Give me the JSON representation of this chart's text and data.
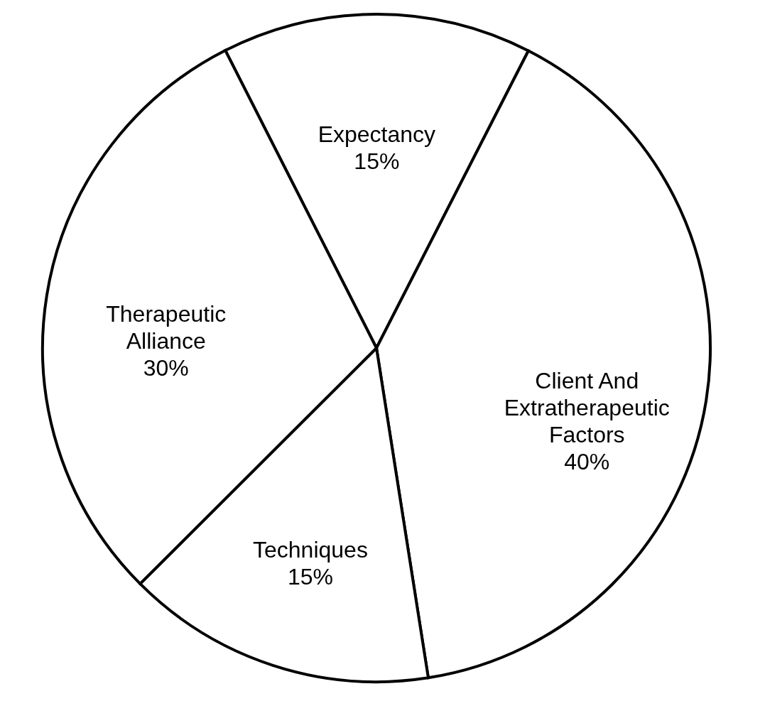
{
  "chart_data": {
    "type": "pie",
    "categories": [
      "Expectancy",
      "Client And Extratherapeutic Factors",
      "Techniques",
      "Therapeutic Alliance"
    ],
    "values": [
      15,
      40,
      15,
      30
    ],
    "value_labels": [
      "15%",
      "40%",
      "15%",
      "30%"
    ],
    "colors": [
      "#ffffff",
      "#ffffff",
      "#ffffff",
      "#ffffff"
    ],
    "legend": false
  }
}
